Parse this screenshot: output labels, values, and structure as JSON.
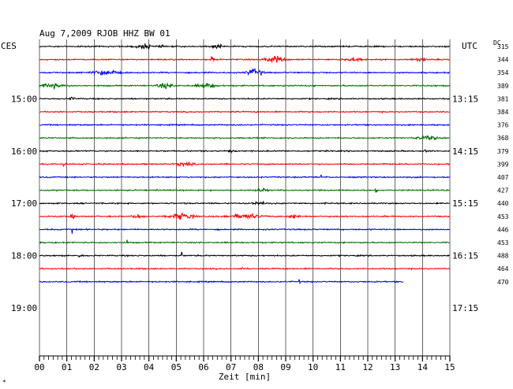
{
  "header": {
    "title": "Aug 7,2009   RJOB HHZ BW 01"
  },
  "left_timezone": "CES",
  "right_timezone": "UTC",
  "dc_label": "DC",
  "xlabel": "Zeit [min]",
  "corner_mark": "*",
  "colors": {
    "black": "#000000",
    "red": "#ff0000",
    "blue": "#0000ff",
    "green": "#007000",
    "grid": "#000000"
  },
  "chart_data": {
    "type": "line",
    "title": "Aug 7,2009   RJOB HHZ BW 01",
    "xlabel": "Zeit [min]",
    "ylabel": "",
    "xlim": [
      0,
      15
    ],
    "x_ticks": [
      "00",
      "01",
      "02",
      "03",
      "04",
      "05",
      "06",
      "07",
      "08",
      "09",
      "10",
      "11",
      "12",
      "13",
      "14",
      "15"
    ],
    "left_hour_labels": [
      "15:00",
      "16:00",
      "17:00",
      "18:00",
      "19:00"
    ],
    "right_hour_labels": [
      "13:15",
      "14:15",
      "15:15",
      "16:15",
      "17:15"
    ],
    "dc_values": [
      "315",
      "344",
      "354",
      "389",
      "381",
      "384",
      "376",
      "368",
      "379",
      "399",
      "407",
      "427",
      "440",
      "453",
      "446",
      "453",
      "488",
      "464",
      "470"
    ],
    "trace_colors": [
      "black",
      "red",
      "blue",
      "green",
      "black",
      "red",
      "blue",
      "green",
      "black",
      "red",
      "blue",
      "green",
      "black",
      "red",
      "blue",
      "green",
      "black",
      "red",
      "blue"
    ],
    "last_trace_end_min": 13.3,
    "grid": true
  }
}
